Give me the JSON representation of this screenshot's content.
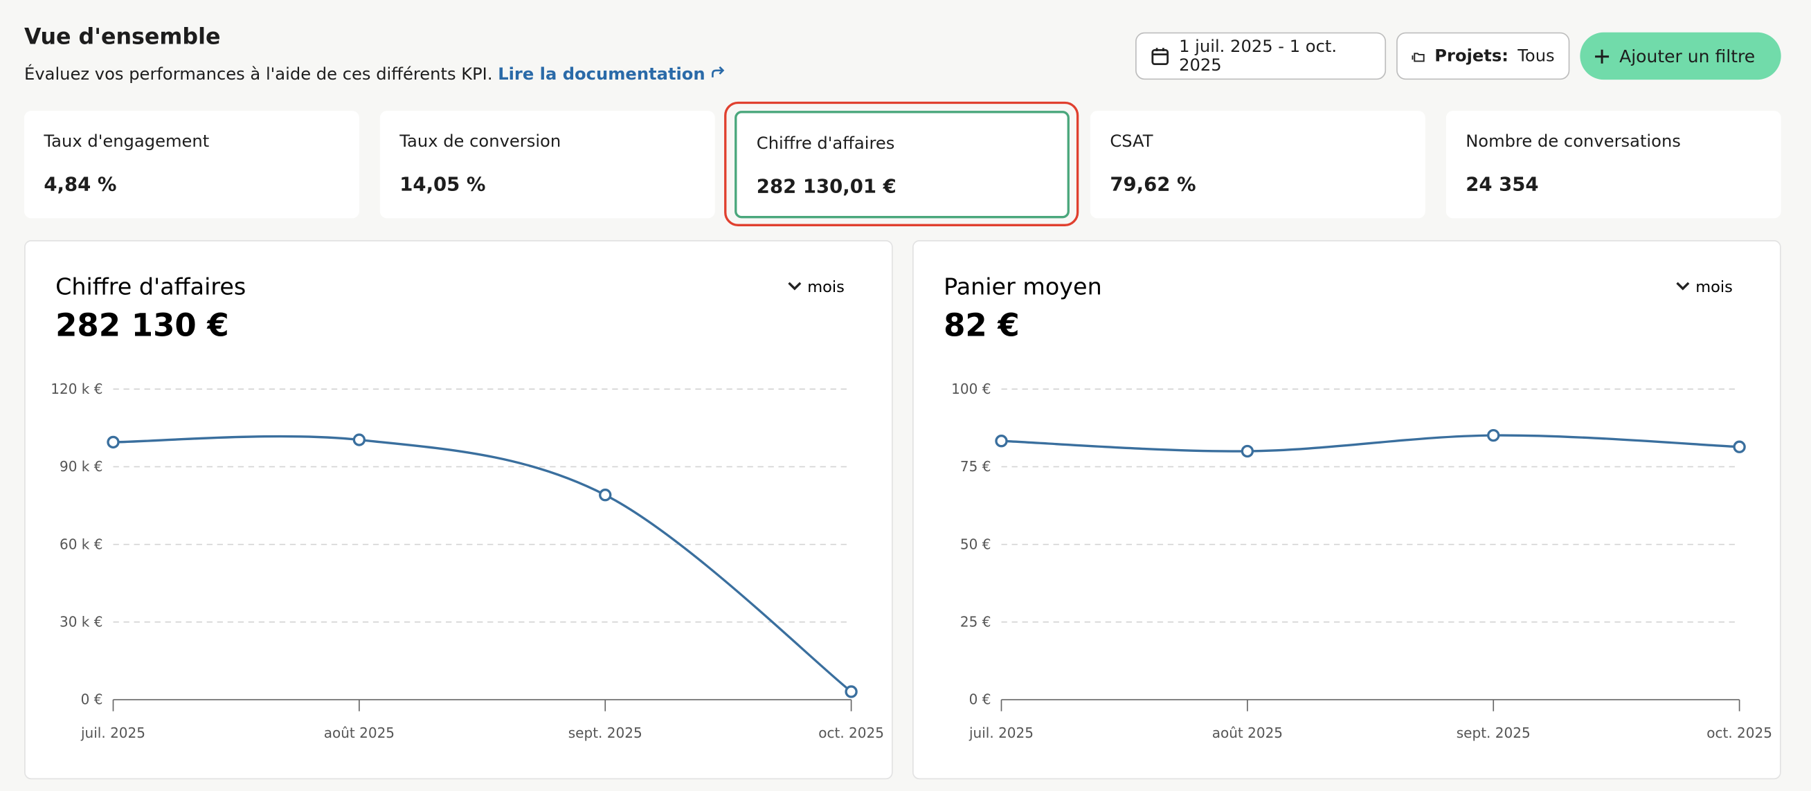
{
  "header": {
    "title": "Vue d'ensemble",
    "subtitle": "Évaluez vos performances à l'aide de ces différents KPI.",
    "link": "Lire la documentation"
  },
  "filters": {
    "date_range": "1 juil. 2025 - 1 oct. 2025",
    "projects_label": "Projets:",
    "projects_value": "Tous",
    "add_filter": "Ajouter un filtre"
  },
  "kpis": [
    {
      "label": "Taux d'engagement",
      "value": "4,84 %"
    },
    {
      "label": "Taux de conversion",
      "value": "14,05 %"
    },
    {
      "label": "Chiffre d'affaires",
      "value": "282 130,01 €"
    },
    {
      "label": "CSAT",
      "value": "79,62 %"
    },
    {
      "label": "Nombre de conversations",
      "value": "24 354"
    }
  ],
  "charts": [
    {
      "type": "line",
      "title": "Chiffre d'affaires",
      "total": "282 130 €",
      "period": "mois",
      "categories": [
        "juil. 2025",
        "août 2025",
        "sept. 2025",
        "oct. 2025"
      ],
      "values": [
        99500,
        100400,
        79100,
        3100
      ],
      "color": "#3a6f9e",
      "ylim": [
        0,
        120000
      ],
      "yticks": [
        {
          "value": 0,
          "label": "0 €"
        },
        {
          "value": 30000,
          "label": "30 k €"
        },
        {
          "value": 60000,
          "label": "60 k €"
        },
        {
          "value": 90000,
          "label": "90 k €"
        },
        {
          "value": 120000,
          "label": "120 k €"
        }
      ],
      "grid": true
    },
    {
      "type": "line",
      "title": "Panier moyen",
      "total": "82 €",
      "period": "mois",
      "categories": [
        "juil. 2025",
        "août 2025",
        "sept. 2025",
        "oct. 2025"
      ],
      "values": [
        83.3,
        80,
        85.1,
        81.4
      ],
      "color": "#3a6f9e",
      "ylim": [
        0,
        100
      ],
      "yticks": [
        {
          "value": 0,
          "label": "0 €"
        },
        {
          "value": 25,
          "label": "25 €"
        },
        {
          "value": 50,
          "label": "50 €"
        },
        {
          "value": 75,
          "label": "75 €"
        },
        {
          "value": 100,
          "label": "100 €"
        }
      ],
      "grid": true
    }
  ]
}
